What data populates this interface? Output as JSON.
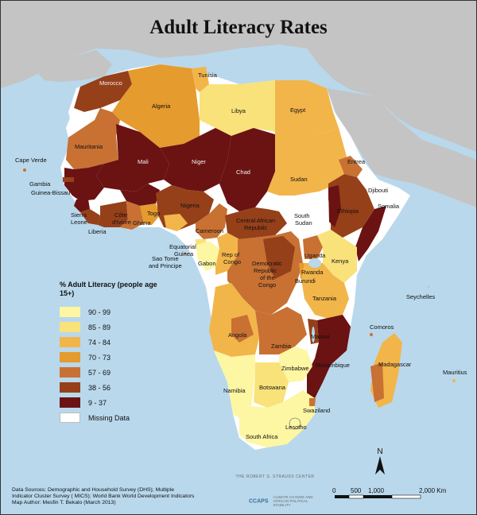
{
  "title": "Adult Literacy Rates",
  "colors": {
    "ocean": "#b9d8ec",
    "land_other": "#c4c4c4",
    "missing": "#ffffff",
    "c_90_99": "#fdf6a3",
    "c_85_89": "#f9e27a",
    "c_74_84": "#f2b54a",
    "c_70_73": "#e59b2d",
    "c_57_69": "#c87133",
    "c_38_56": "#96401a",
    "c_9_37": "#6b1212"
  },
  "legend": {
    "title": "% Adult Literacy (people age 15+)",
    "items": [
      {
        "label": "90 - 99",
        "color": "#fdf6a3"
      },
      {
        "label": "85 - 89",
        "color": "#f9e27a"
      },
      {
        "label": "74 - 84",
        "color": "#f2b54a"
      },
      {
        "label": "70 - 73",
        "color": "#e59b2d"
      },
      {
        "label": "57 - 69",
        "color": "#c87133"
      },
      {
        "label": "38 - 56",
        "color": "#96401a"
      },
      {
        "label": "9 - 37",
        "color": "#6b1212"
      },
      {
        "label": "Missing Data",
        "color": "#ffffff"
      }
    ]
  },
  "countries": {
    "tunisia": "Tunisia",
    "morocco": "Morocco",
    "algeria": "Algeria",
    "libya": "Libya",
    "egypt": "Egypt",
    "mauritania": "Mauritania",
    "mali": "Mali",
    "niger": "Niger",
    "chad": "Chad",
    "sudan": "Sudan",
    "eritrea": "Eritrea",
    "djibouti": "Djibouti",
    "somalia": "Somalia",
    "ethiopia": "Ethiopia",
    "south_sudan_1": "South",
    "south_sudan_2": "Sudan",
    "car_1": "Central African",
    "car_2": "Republic",
    "cape_verde": "Cape Verde",
    "gambia": "Gambia",
    "guinea_bissau": "Guinea-Bissau",
    "sierra_leone_1": "Sierra",
    "sierra_leone_2": "Leone",
    "liberia": "Liberia",
    "cote_divoire_1": "Côte",
    "cote_divoire_2": "d'Ivoire",
    "ghana": "Ghana",
    "togo": "Togo",
    "nigeria": "Nigeria",
    "cameroon": "Cameroon",
    "eq_guinea_1": "Equatorial",
    "eq_guinea_2": "Guinea",
    "sao_tome_1": "Sao Tome",
    "sao_tome_2": "and Principe",
    "gabon": "Gabon",
    "congo_1": "Rep of",
    "congo_2": "Congo",
    "drc_1": "Democratic",
    "drc_2": "Republic",
    "drc_3": "of the",
    "drc_4": "Congo",
    "uganda": "Uganda",
    "kenya": "Kenya",
    "rwanda": "Rwanda",
    "burundi": "Burundi",
    "tanzania": "Tanzania",
    "seychelles": "Seychelles",
    "comoros": "Comoros",
    "angola": "Angola",
    "zambia": "Zambia",
    "malawi": "Malawi",
    "mozambique": "Mozambique",
    "madagascar": "Madagascar",
    "mauritius": "Mauritius",
    "zimbabwe": "Zimbabwe",
    "namibia": "Namibia",
    "botswana": "Botswana",
    "swaziland": "Swaziland",
    "lesotho": "Lesotho",
    "south_africa": "South Africa"
  },
  "credits": {
    "line1": "Data Sources: Demographic and Household Survey (DHS); Multiple",
    "line2": "Indicator Cluster Survey ( MICS); World Bank World Development Indicators",
    "line3": "Map Author: Mesfin T. Bekalo (March 2013)"
  },
  "logos": {
    "strauss": "THE ROBERT S. STRAUSS CENTER",
    "ccaps": "CCAPS",
    "ccaps_text": "CLIMATE CHANGE AND AFRICAN POLITICAL STABILITY"
  },
  "scale_bar": {
    "labels": [
      "0",
      "500",
      "1,000",
      "2,000 Km"
    ]
  },
  "north": "N"
}
